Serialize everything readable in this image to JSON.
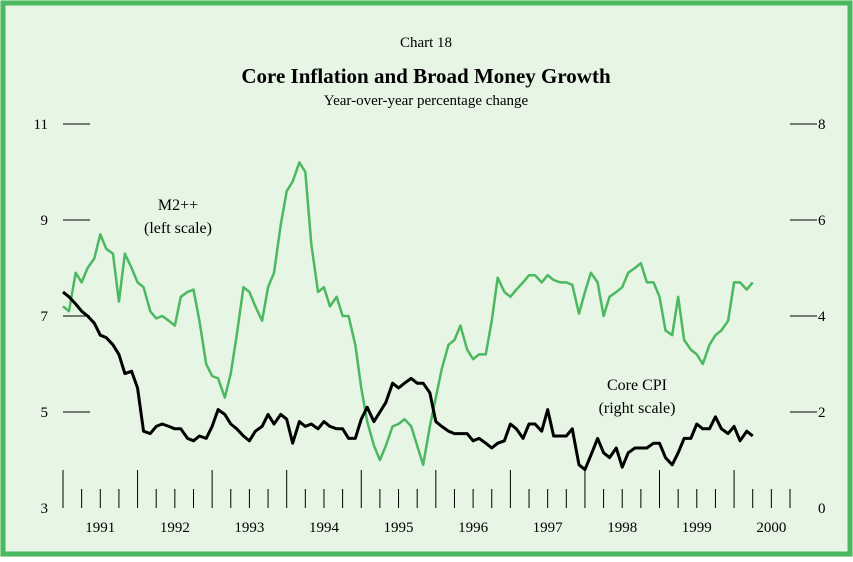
{
  "chart_data": {
    "type": "line",
    "label": "Chart 18",
    "title": "Core Inflation and Broad Money Growth",
    "subtitle": "Year-over-year percentage change",
    "annotations": [
      {
        "text": "M2++",
        "series": 0
      },
      {
        "text": "(left scale)",
        "series": 0
      },
      {
        "text": "Core CPI",
        "series": 1
      },
      {
        "text": "(right scale)",
        "series": 1
      }
    ],
    "x": [
      1991.0,
      1991.08,
      1991.17,
      1991.25,
      1991.33,
      1991.42,
      1991.5,
      1991.58,
      1991.67,
      1991.75,
      1991.83,
      1991.92,
      1992.0,
      1992.08,
      1992.17,
      1992.25,
      1992.33,
      1992.42,
      1992.5,
      1992.58,
      1992.67,
      1992.75,
      1992.83,
      1992.92,
      1993.0,
      1993.08,
      1993.17,
      1993.25,
      1993.33,
      1993.42,
      1993.5,
      1993.58,
      1993.67,
      1993.75,
      1993.83,
      1993.92,
      1994.0,
      1994.08,
      1994.17,
      1994.25,
      1994.33,
      1994.42,
      1994.5,
      1994.58,
      1994.67,
      1994.75,
      1994.83,
      1994.92,
      1995.0,
      1995.08,
      1995.17,
      1995.25,
      1995.33,
      1995.42,
      1995.5,
      1995.58,
      1995.67,
      1995.75,
      1995.83,
      1995.92,
      1996.0,
      1996.08,
      1996.17,
      1996.25,
      1996.33,
      1996.42,
      1996.5,
      1996.58,
      1996.67,
      1996.75,
      1996.83,
      1996.92,
      1997.0,
      1997.08,
      1997.17,
      1997.25,
      1997.33,
      1997.42,
      1997.5,
      1997.58,
      1997.67,
      1997.75,
      1997.83,
      1997.92,
      1998.0,
      1998.08,
      1998.17,
      1998.25,
      1998.33,
      1998.42,
      1998.5,
      1998.58,
      1998.67,
      1998.75,
      1998.83,
      1998.92,
      1999.0,
      1999.08,
      1999.17,
      1999.25,
      1999.33,
      1999.42,
      1999.5,
      1999.58,
      1999.67,
      1999.75,
      1999.83,
      1999.92,
      2000.0,
      2000.08,
      2000.17,
      2000.25
    ],
    "series": [
      {
        "name": "M2++",
        "color": "#4cb860",
        "axis": "y",
        "values": [
          7.2,
          7.1,
          7.9,
          7.7,
          8.0,
          8.2,
          8.7,
          8.4,
          8.3,
          7.3,
          8.3,
          8.0,
          7.7,
          7.6,
          7.1,
          6.95,
          7.0,
          6.9,
          6.8,
          7.4,
          7.5,
          7.55,
          6.9,
          6.0,
          5.75,
          5.7,
          5.3,
          5.8,
          6.6,
          7.6,
          7.5,
          7.2,
          6.9,
          7.6,
          7.9,
          8.9,
          9.6,
          9.8,
          10.2,
          10.0,
          8.5,
          7.5,
          7.6,
          7.2,
          7.4,
          7.0,
          7.0,
          6.4,
          5.5,
          4.8,
          4.3,
          4.0,
          4.3,
          4.7,
          4.75,
          4.85,
          4.7,
          4.3,
          3.9,
          4.7,
          5.3,
          5.9,
          6.4,
          6.5,
          6.8,
          6.3,
          6.1,
          6.2,
          6.2,
          6.9,
          7.8,
          7.5,
          7.4,
          7.55,
          7.7,
          7.85,
          7.85,
          7.7,
          7.85,
          7.75,
          7.7,
          7.7,
          7.65,
          7.05,
          7.5,
          7.9,
          7.7,
          7.0,
          7.4,
          7.5,
          7.6,
          7.9,
          8.0,
          8.1,
          7.7,
          7.7,
          7.4,
          6.7,
          6.6,
          7.4,
          6.5,
          6.3,
          6.2,
          6.0,
          6.4,
          6.6,
          6.7,
          6.9,
          7.7,
          7.7,
          7.55,
          7.7
        ]
      },
      {
        "name": "Core CPI",
        "color": "#000000",
        "axis": "y2",
        "values": [
          4.5,
          4.4,
          4.25,
          4.1,
          4.0,
          3.85,
          3.6,
          3.55,
          3.4,
          3.2,
          2.8,
          2.85,
          2.5,
          1.6,
          1.55,
          1.7,
          1.75,
          1.7,
          1.65,
          1.65,
          1.45,
          1.4,
          1.5,
          1.45,
          1.7,
          2.05,
          1.95,
          1.75,
          1.65,
          1.5,
          1.4,
          1.6,
          1.7,
          1.95,
          1.75,
          1.95,
          1.85,
          1.35,
          1.8,
          1.7,
          1.75,
          1.65,
          1.8,
          1.7,
          1.65,
          1.65,
          1.45,
          1.45,
          1.85,
          2.1,
          1.8,
          2.0,
          2.2,
          2.6,
          2.5,
          2.6,
          2.7,
          2.6,
          2.6,
          2.4,
          1.8,
          1.7,
          1.6,
          1.55,
          1.55,
          1.55,
          1.4,
          1.45,
          1.35,
          1.25,
          1.35,
          1.4,
          1.75,
          1.65,
          1.45,
          1.75,
          1.75,
          1.6,
          2.05,
          1.5,
          1.5,
          1.5,
          1.65,
          0.9,
          0.8,
          1.1,
          1.45,
          1.15,
          1.05,
          1.25,
          0.85,
          1.15,
          1.25,
          1.25,
          1.25,
          1.35,
          1.35,
          1.05,
          0.9,
          1.15,
          1.45,
          1.45,
          1.75,
          1.65,
          1.65,
          1.9,
          1.65,
          1.55,
          1.7,
          1.4,
          1.6,
          1.5
        ]
      }
    ],
    "xlim": [
      1991,
      2000.75
    ],
    "xticks": [
      {
        "value": 1991.5,
        "label": "1991"
      },
      {
        "value": 1992.5,
        "label": "1992"
      },
      {
        "value": 1993.5,
        "label": "1993"
      },
      {
        "value": 1994.5,
        "label": "1994"
      },
      {
        "value": 1995.5,
        "label": "1995"
      },
      {
        "value": 1996.5,
        "label": "1996"
      },
      {
        "value": 1997.5,
        "label": "1997"
      },
      {
        "value": 1998.5,
        "label": "1998"
      },
      {
        "value": 1999.5,
        "label": "1999"
      },
      {
        "value": 2000.5,
        "label": "2000"
      }
    ],
    "ylim": [
      3,
      11
    ],
    "yticks": [
      3,
      5,
      7,
      9,
      11
    ],
    "y2lim": [
      0,
      8
    ],
    "y2ticks": [
      0,
      2,
      4,
      6,
      8
    ],
    "background": "#e6f5e4",
    "frame_color": "#4cb860"
  }
}
